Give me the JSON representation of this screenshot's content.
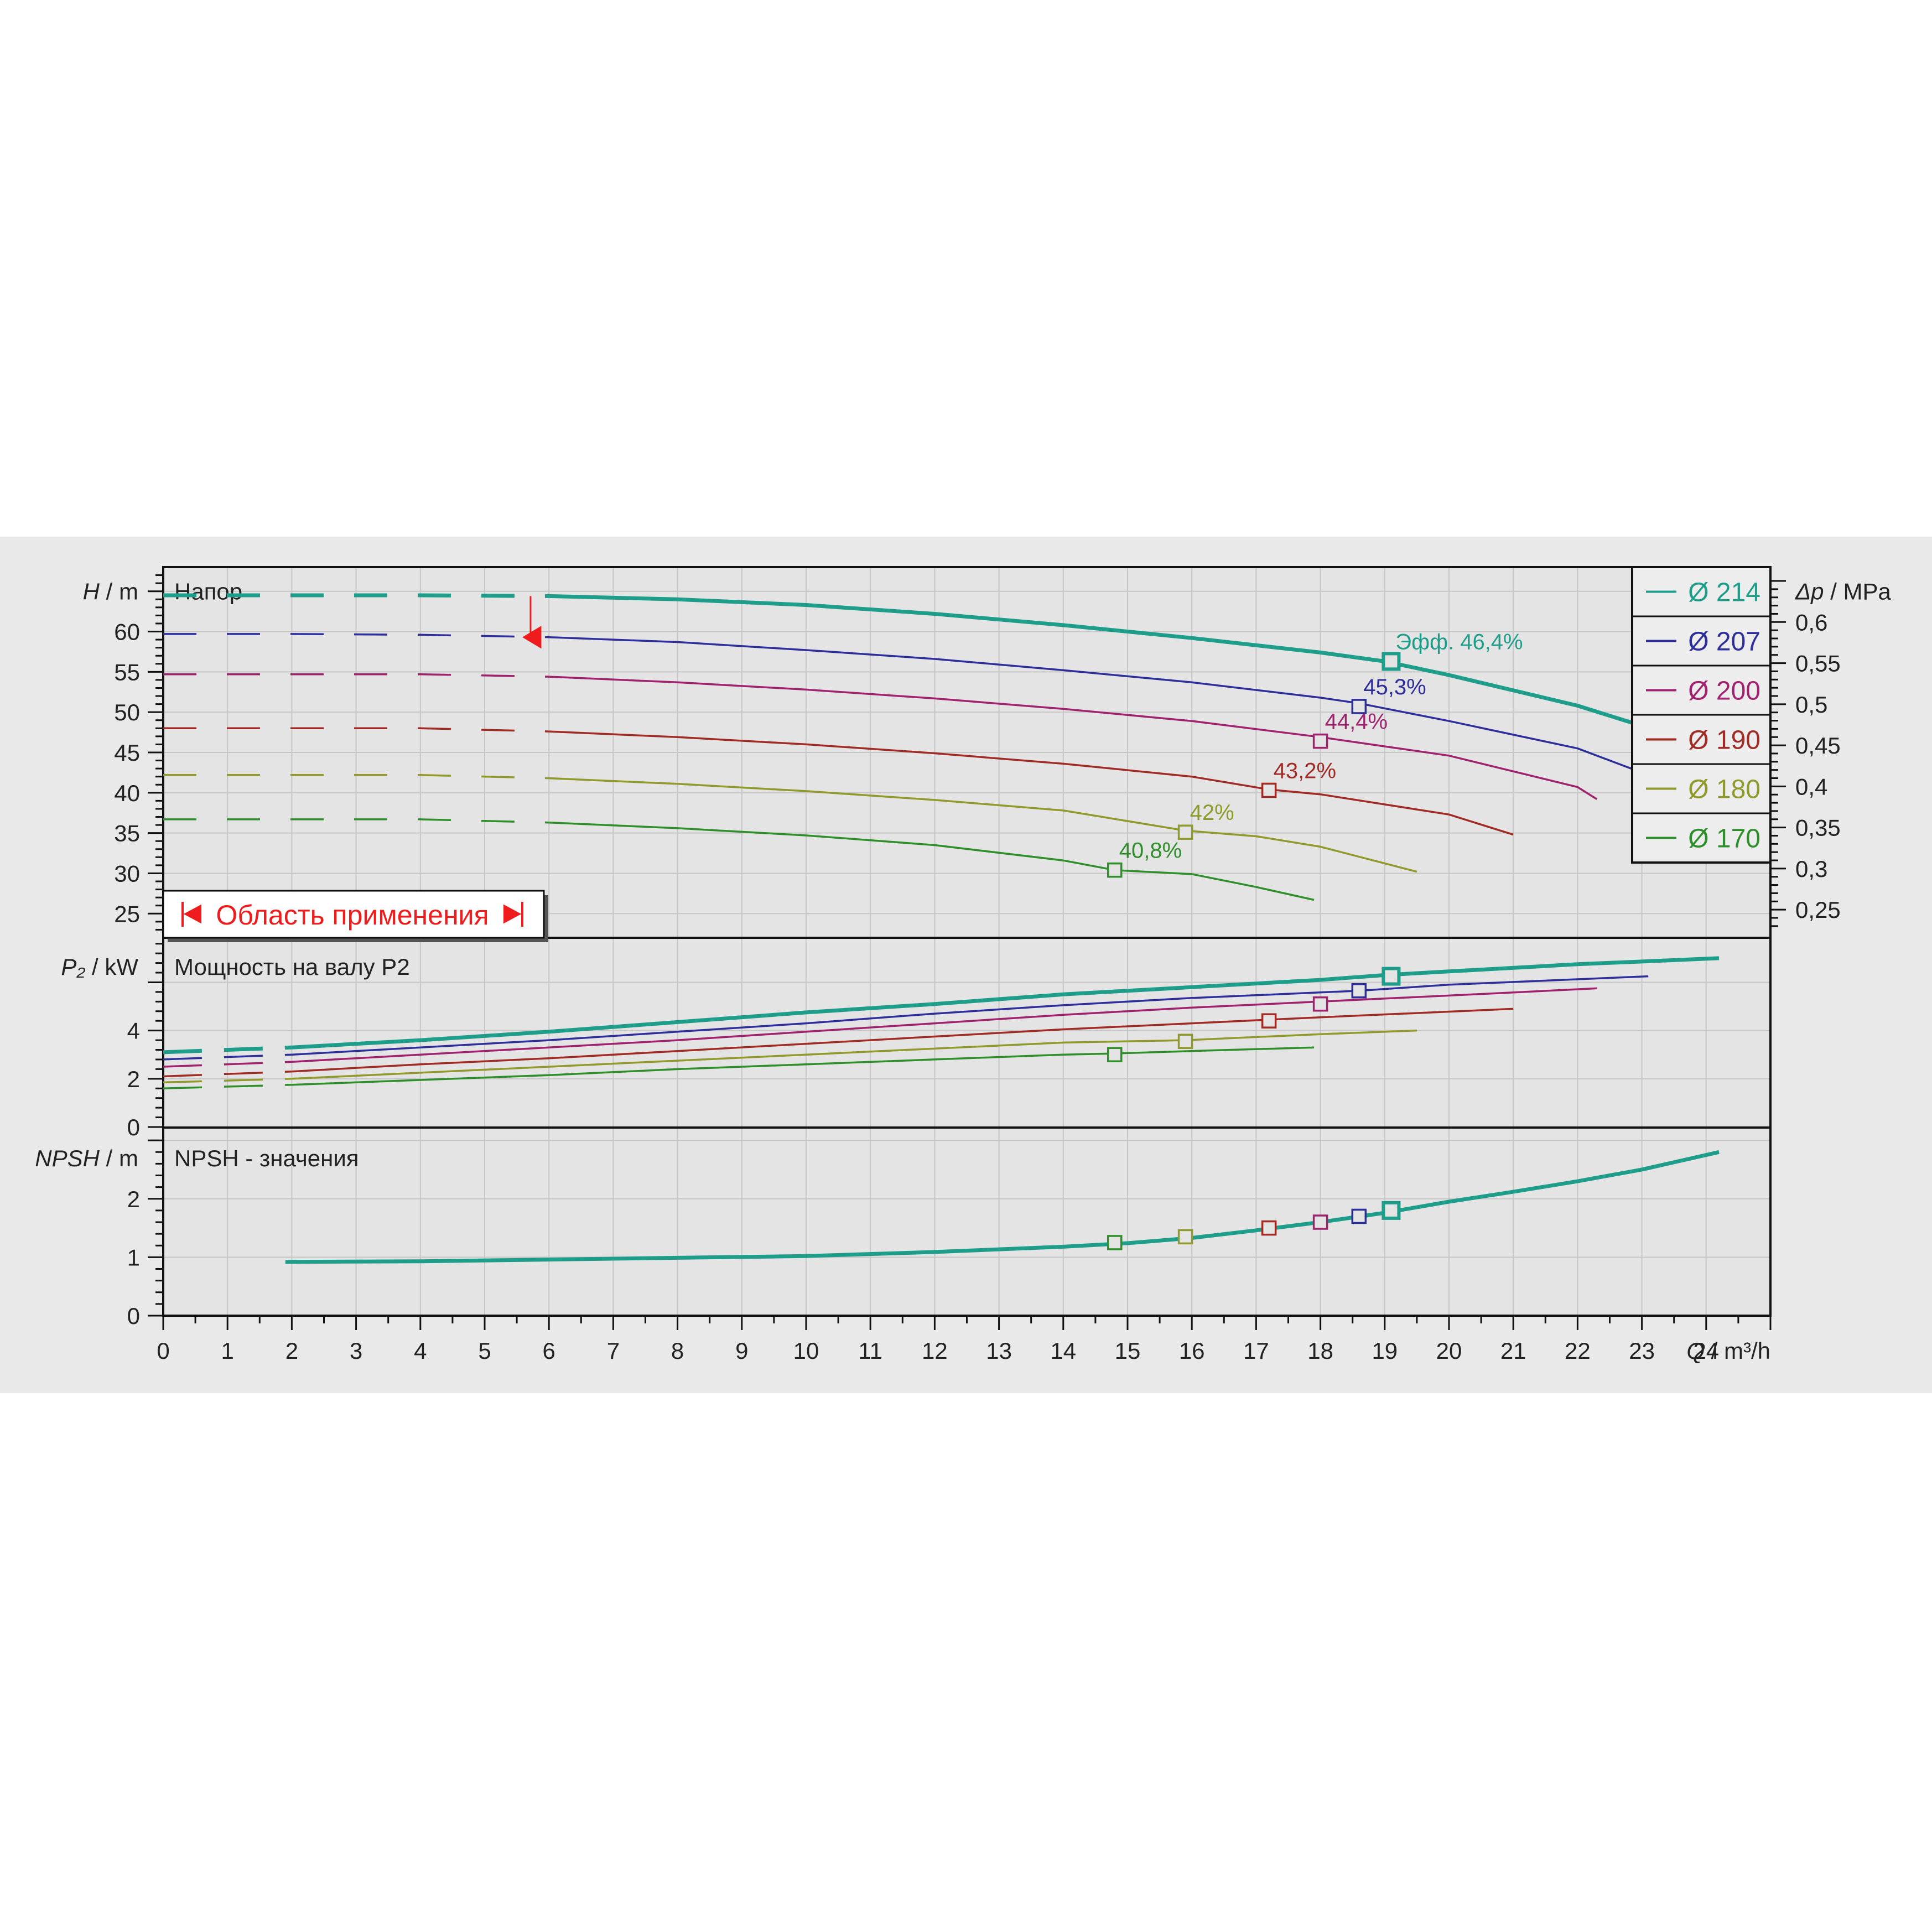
{
  "chart_data": {
    "type": "line",
    "x": {
      "label_var": "Q",
      "label_unit": "/ m³/h",
      "range": [
        0,
        25
      ],
      "ticks": [
        0,
        1,
        2,
        3,
        4,
        5,
        6,
        7,
        8,
        9,
        10,
        11,
        12,
        13,
        14,
        15,
        16,
        17,
        18,
        19,
        20,
        21,
        22,
        23,
        24
      ]
    },
    "panels": {
      "head": {
        "title": "Напор",
        "y_var": "H",
        "y_unit": "/ m",
        "ylim": [
          22,
          68
        ],
        "ticks": [
          25,
          30,
          35,
          40,
          45,
          50,
          55,
          60
        ],
        "y2_var": "Δp",
        "y2_unit": "/ MPa",
        "y2_ticks": [
          "0,25",
          "0,3",
          "0,35",
          "0,4",
          "0,45",
          "0,5",
          "0,55",
          "0,6"
        ],
        "y2_values": [
          0.25,
          0.3,
          0.35,
          0.4,
          0.45,
          0.5,
          0.55,
          0.6
        ],
        "efficiency_prefix": "Эфф."
      },
      "power": {
        "title": "Мощность на валу P2",
        "y_var": "P₂",
        "y_unit": "/ kW",
        "ylim": [
          0,
          7.8
        ],
        "ticks": [
          0,
          2,
          4
        ]
      },
      "npsh": {
        "title": "NPSH - значения",
        "y_var": "NPSH",
        "y_unit": "/ m",
        "ylim": [
          0,
          3.2
        ],
        "ticks": [
          0,
          1,
          2
        ]
      }
    },
    "application_range": {
      "label": "Область применения",
      "q_min": 5.8,
      "q_max": 24.2
    },
    "series": [
      {
        "name": "Ø 214",
        "color": "#1e9e8a",
        "bold": true,
        "head": [
          [
            0,
            64.5
          ],
          [
            2,
            64.5
          ],
          [
            4,
            64.5
          ],
          [
            6,
            64.4
          ],
          [
            8,
            64
          ],
          [
            10,
            63.3
          ],
          [
            12,
            62.2
          ],
          [
            14,
            60.8
          ],
          [
            16,
            59.2
          ],
          [
            18,
            57.4
          ],
          [
            19,
            56.3
          ],
          [
            20,
            54.6
          ],
          [
            22,
            50.8
          ],
          [
            23,
            48.3
          ],
          [
            24.2,
            45.6
          ]
        ],
        "power": [
          [
            0,
            3.1
          ],
          [
            2,
            3.3
          ],
          [
            4,
            3.6
          ],
          [
            6,
            3.95
          ],
          [
            8,
            4.35
          ],
          [
            10,
            4.75
          ],
          [
            12,
            5.1
          ],
          [
            14,
            5.5
          ],
          [
            16,
            5.8
          ],
          [
            18,
            6.1
          ],
          [
            19,
            6.3
          ],
          [
            20,
            6.45
          ],
          [
            22,
            6.75
          ],
          [
            24.2,
            7.0
          ]
        ],
        "npsh": [
          [
            1.9,
            0.92
          ],
          [
            4,
            0.93
          ],
          [
            6,
            0.96
          ],
          [
            8,
            0.99
          ],
          [
            10,
            1.02
          ],
          [
            12,
            1.09
          ],
          [
            14,
            1.18
          ],
          [
            15,
            1.24
          ],
          [
            16,
            1.33
          ],
          [
            17,
            1.46
          ],
          [
            18,
            1.6
          ],
          [
            19,
            1.76
          ],
          [
            20,
            1.95
          ],
          [
            21,
            2.12
          ],
          [
            22,
            2.3
          ],
          [
            23,
            2.5
          ],
          [
            24.2,
            2.8
          ]
        ],
        "bep": {
          "q": 19.1,
          "h": 56.3,
          "p": 6.25,
          "npsh": 1.8,
          "eff": "46,4%"
        }
      },
      {
        "name": "Ø 207",
        "color": "#2e2e9a",
        "head": [
          [
            0,
            59.7
          ],
          [
            2,
            59.7
          ],
          [
            4,
            59.6
          ],
          [
            6,
            59.3
          ],
          [
            8,
            58.7
          ],
          [
            10,
            57.7
          ],
          [
            12,
            56.6
          ],
          [
            14,
            55.2
          ],
          [
            16,
            53.7
          ],
          [
            18,
            51.8
          ],
          [
            18.6,
            51.1
          ],
          [
            20,
            48.9
          ],
          [
            22,
            45.5
          ],
          [
            23.1,
            42.2
          ]
        ],
        "power": [
          [
            0,
            2.8
          ],
          [
            2,
            3.0
          ],
          [
            4,
            3.3
          ],
          [
            6,
            3.6
          ],
          [
            8,
            3.95
          ],
          [
            10,
            4.3
          ],
          [
            12,
            4.7
          ],
          [
            14,
            5.05
          ],
          [
            16,
            5.35
          ],
          [
            18.6,
            5.65
          ],
          [
            20,
            5.9
          ],
          [
            23.1,
            6.25
          ]
        ],
        "bep": {
          "q": 18.6,
          "h": 50.7,
          "p": 5.65,
          "npsh": 1.7,
          "eff": "45,3%"
        }
      },
      {
        "name": "Ø 200",
        "color": "#a0226e",
        "head": [
          [
            0,
            54.7
          ],
          [
            2,
            54.7
          ],
          [
            4,
            54.7
          ],
          [
            6,
            54.4
          ],
          [
            8,
            53.7
          ],
          [
            10,
            52.8
          ],
          [
            12,
            51.7
          ],
          [
            14,
            50.4
          ],
          [
            16,
            48.9
          ],
          [
            18,
            46.9
          ],
          [
            20,
            44.6
          ],
          [
            22,
            40.7
          ],
          [
            22.3,
            39.2
          ]
        ],
        "power": [
          [
            0,
            2.5
          ],
          [
            2,
            2.7
          ],
          [
            4,
            3.0
          ],
          [
            6,
            3.3
          ],
          [
            8,
            3.6
          ],
          [
            10,
            3.95
          ],
          [
            12,
            4.3
          ],
          [
            14,
            4.65
          ],
          [
            16,
            4.95
          ],
          [
            18,
            5.2
          ],
          [
            20,
            5.45
          ],
          [
            22.3,
            5.75
          ]
        ],
        "bep": {
          "q": 18.0,
          "h": 46.4,
          "p": 5.1,
          "npsh": 1.6,
          "eff": "44,4%"
        }
      },
      {
        "name": "Ø 190",
        "color": "#a02a24",
        "head": [
          [
            0,
            48
          ],
          [
            2,
            48
          ],
          [
            4,
            48
          ],
          [
            6,
            47.6
          ],
          [
            8,
            46.9
          ],
          [
            10,
            46
          ],
          [
            12,
            44.9
          ],
          [
            14,
            43.6
          ],
          [
            16,
            42
          ],
          [
            17.2,
            40.4
          ],
          [
            18,
            39.8
          ],
          [
            20,
            37.3
          ],
          [
            21,
            34.8
          ]
        ],
        "power": [
          [
            0,
            2.1
          ],
          [
            2,
            2.3
          ],
          [
            4,
            2.6
          ],
          [
            6,
            2.85
          ],
          [
            8,
            3.15
          ],
          [
            10,
            3.45
          ],
          [
            12,
            3.75
          ],
          [
            14,
            4.05
          ],
          [
            16,
            4.3
          ],
          [
            17.2,
            4.45
          ],
          [
            18,
            4.55
          ],
          [
            21,
            4.9
          ]
        ],
        "bep": {
          "q": 17.2,
          "h": 40.3,
          "p": 4.4,
          "npsh": 1.5,
          "eff": "43,2%"
        }
      },
      {
        "name": "Ø 180",
        "color": "#8f9a2a",
        "head": [
          [
            0,
            42.2
          ],
          [
            2,
            42.2
          ],
          [
            4,
            42.2
          ],
          [
            6,
            41.8
          ],
          [
            8,
            41.1
          ],
          [
            10,
            40.2
          ],
          [
            12,
            39.1
          ],
          [
            14,
            37.8
          ],
          [
            15.9,
            35.3
          ],
          [
            17,
            34.6
          ],
          [
            18,
            33.3
          ],
          [
            19.5,
            30.2
          ]
        ],
        "power": [
          [
            0,
            1.85
          ],
          [
            2,
            2.0
          ],
          [
            4,
            2.25
          ],
          [
            6,
            2.5
          ],
          [
            8,
            2.75
          ],
          [
            10,
            3.0
          ],
          [
            12,
            3.25
          ],
          [
            14,
            3.5
          ],
          [
            15.9,
            3.6
          ],
          [
            18,
            3.85
          ],
          [
            19.5,
            4.0
          ]
        ],
        "bep": {
          "q": 15.9,
          "h": 35.1,
          "p": 3.55,
          "npsh": 1.35,
          "eff": "42%"
        }
      },
      {
        "name": "Ø 170",
        "color": "#2e8f2a",
        "head": [
          [
            0,
            36.7
          ],
          [
            2,
            36.7
          ],
          [
            4,
            36.7
          ],
          [
            6,
            36.3
          ],
          [
            8,
            35.6
          ],
          [
            10,
            34.7
          ],
          [
            12,
            33.5
          ],
          [
            14,
            31.6
          ],
          [
            14.8,
            30.4
          ],
          [
            16,
            29.9
          ],
          [
            17,
            28.3
          ],
          [
            17.9,
            26.7
          ]
        ],
        "power": [
          [
            0,
            1.6
          ],
          [
            2,
            1.75
          ],
          [
            4,
            1.95
          ],
          [
            6,
            2.15
          ],
          [
            8,
            2.4
          ],
          [
            10,
            2.6
          ],
          [
            12,
            2.8
          ],
          [
            14,
            3.0
          ],
          [
            14.8,
            3.05
          ],
          [
            16,
            3.15
          ],
          [
            17.9,
            3.3
          ]
        ],
        "bep": {
          "q": 14.8,
          "h": 30.4,
          "p": 3.0,
          "npsh": 1.25,
          "eff": "40,8%"
        }
      }
    ]
  }
}
